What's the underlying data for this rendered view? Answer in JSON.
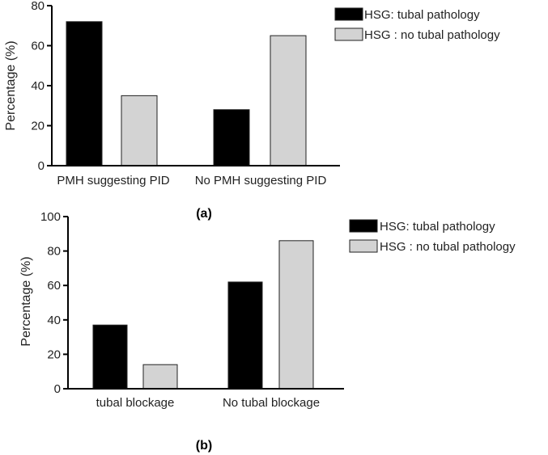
{
  "colors": {
    "series_1": "#000000",
    "series_2": "#d3d3d3",
    "bar_outline": "#222222",
    "axis": "#000000"
  },
  "chart_data": [
    {
      "type": "bar",
      "panel_label": "(a)",
      "ylabel": "Percentage (%)",
      "ylim": [
        0,
        80
      ],
      "yticks": [
        0,
        20,
        40,
        60,
        80
      ],
      "categories": [
        "PMH suggesting PID",
        "No PMH suggesting PID"
      ],
      "series": [
        {
          "name": "HSG: tubal pathology",
          "values": [
            72,
            28
          ]
        },
        {
          "name": "HSG : no tubal pathology",
          "values": [
            35,
            65
          ]
        }
      ],
      "legend_position": "top-right",
      "grid": false
    },
    {
      "type": "bar",
      "panel_label": "(b)",
      "ylabel": "Percentage (%)",
      "ylim": [
        0,
        100
      ],
      "yticks": [
        0,
        20,
        40,
        60,
        80,
        100
      ],
      "categories": [
        "tubal blockage",
        "No tubal blockage"
      ],
      "series": [
        {
          "name": "HSG: tubal pathology",
          "values": [
            37,
            62
          ]
        },
        {
          "name": "HSG : no tubal pathology",
          "values": [
            14,
            86
          ]
        }
      ],
      "legend_position": "top-right",
      "grid": false
    }
  ]
}
